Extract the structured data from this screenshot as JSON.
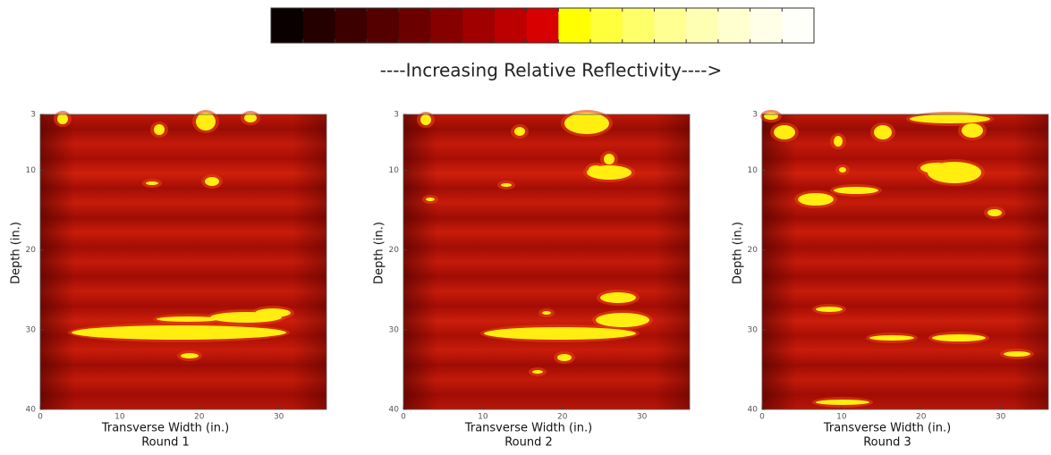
{
  "colorbar": {
    "label": "----Increasing Relative Reflectivity---->",
    "colors": [
      "#0a0000",
      "#240000",
      "#3c0000",
      "#540000",
      "#6c0000",
      "#860000",
      "#a00000",
      "#bc0000",
      "#d80000",
      "#ffff00",
      "#ffff3c",
      "#ffff6a",
      "#ffff92",
      "#ffffb4",
      "#ffffd0",
      "#ffffe8",
      "#fffffa"
    ]
  },
  "chart_data": [
    {
      "type": "heatmap",
      "title": "Round 1",
      "x_label": "Transverse Width (in.)",
      "y_label": "Depth (in.)",
      "xlim": [
        0,
        36
      ],
      "ylim": [
        3,
        40
      ],
      "xticks": [
        0,
        10,
        20,
        30
      ],
      "yticks": [
        3,
        10,
        20,
        30,
        40
      ]
    },
    {
      "type": "heatmap",
      "title": "Round 2",
      "x_label": "Transverse Width (in.)",
      "y_label": "Depth (in.)",
      "xlim": [
        0,
        36
      ],
      "ylim": [
        3,
        40
      ],
      "xticks": [
        0,
        10,
        20,
        30
      ],
      "yticks": [
        3,
        10,
        20,
        30,
        40
      ]
    },
    {
      "type": "heatmap",
      "title": "Round 3",
      "x_label": "Transverse Width (in.)",
      "y_label": "Depth (in.)",
      "xlim": [
        0,
        36
      ],
      "ylim": [
        3,
        40
      ],
      "xticks": [
        0,
        10,
        20,
        30
      ],
      "yticks": [
        3,
        10,
        20,
        30,
        40
      ]
    }
  ]
}
